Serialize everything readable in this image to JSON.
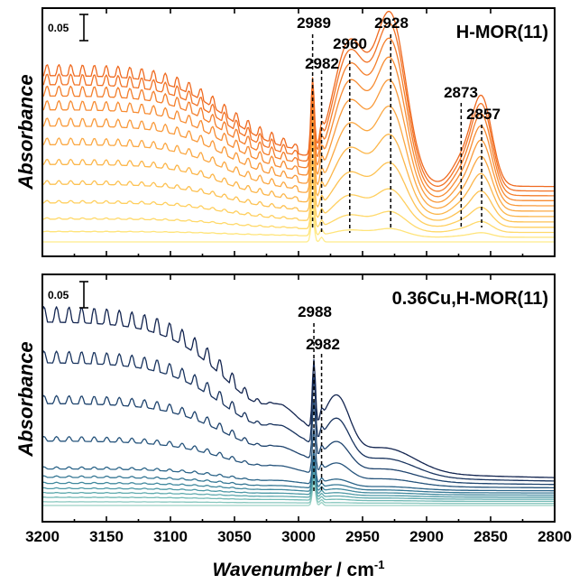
{
  "chart_data": {
    "type": "line",
    "xlabel_main": "Wavenumber",
    "xlabel_unit": " / cm",
    "xlabel_exp": "-1",
    "x_range": [
      3200,
      2800
    ],
    "x_ticks": [
      "3200",
      "3150",
      "3100",
      "3050",
      "3000",
      "2950",
      "2900",
      "2850",
      "2800"
    ],
    "x_tick_values": [
      3200,
      3150,
      3100,
      3050,
      3000,
      2950,
      2900,
      2850,
      2800
    ],
    "panels": [
      {
        "title": "H-MOR(11)",
        "ylabel": "Absorbance",
        "scale_bar_label": "0.05",
        "n_series": 12,
        "colors": [
          "#ffec8b",
          "#ffe47a",
          "#ffd96a",
          "#ffcf5e",
          "#fdc253",
          "#fcb64a",
          "#fba843",
          "#f99a3b",
          "#f78c33",
          "#f47f2c",
          "#f27326",
          "#ef6a20"
        ],
        "annotations": [
          {
            "label": "2989",
            "x": 2989
          },
          {
            "label": "2982",
            "x": 2982
          },
          {
            "label": "2960",
            "x": 2960
          },
          {
            "label": "2928",
            "x": 2928
          },
          {
            "label": "2873",
            "x": 2873
          },
          {
            "label": "2857",
            "x": 2857
          }
        ]
      },
      {
        "title": "0.36Cu,H-MOR(11)",
        "ylabel": "Absorbance",
        "scale_bar_label": "0.05",
        "n_series": 12,
        "colors": [
          "#9ad1c4",
          "#86c6bd",
          "#72b9b5",
          "#5faaae",
          "#4e99a6",
          "#41899e",
          "#357794",
          "#2c6589",
          "#26547c",
          "#1f446e",
          "#19345f",
          "#132550"
        ],
        "annotations": [
          {
            "label": "2988",
            "x": 2988
          },
          {
            "label": "2982",
            "x": 2982
          }
        ]
      }
    ]
  }
}
